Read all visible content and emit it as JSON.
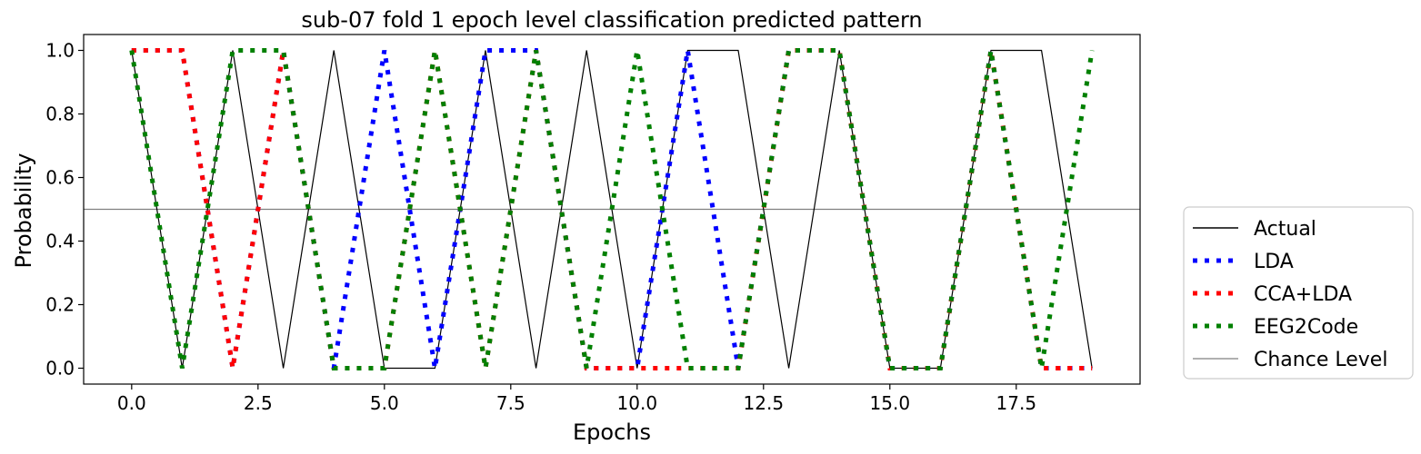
{
  "chart_data": {
    "type": "line",
    "title": "sub-07 fold 1 epoch level classification predicted pattern",
    "xlabel": "Epochs",
    "ylabel": "Probability",
    "xlim": [
      -0.95,
      19.95
    ],
    "ylim": [
      -0.05,
      1.05
    ],
    "xticks": [
      0.0,
      2.5,
      5.0,
      7.5,
      10.0,
      12.5,
      15.0,
      17.5
    ],
    "xtick_labels": [
      "0.0",
      "2.5",
      "5.0",
      "7.5",
      "10.0",
      "12.5",
      "15.0",
      "17.5"
    ],
    "yticks": [
      0.0,
      0.2,
      0.4,
      0.6,
      0.8,
      1.0
    ],
    "ytick_labels": [
      "0.0",
      "0.2",
      "0.4",
      "0.6",
      "0.8",
      "1.0"
    ],
    "grid": false,
    "legend_position": "outside-right-bottom",
    "chance_level": 0.5,
    "series": [
      {
        "name": "Actual",
        "color": "#000000",
        "style": "solid",
        "x": [
          0,
          1,
          2,
          3,
          4,
          5,
          6,
          7,
          8,
          9,
          10,
          11,
          12,
          13,
          14,
          15,
          16,
          17,
          18,
          19
        ],
        "y": [
          1,
          0,
          1,
          0,
          1,
          0,
          0,
          1,
          0,
          1,
          0,
          1,
          1,
          0,
          1,
          0,
          0,
          1,
          1,
          0
        ]
      },
      {
        "name": "LDA",
        "color": "#0000ff",
        "style": "dotted",
        "x": [
          0,
          1,
          2,
          3,
          4,
          5,
          6,
          7,
          8,
          9,
          10,
          11,
          12,
          13,
          14,
          15,
          16,
          17,
          18,
          19
        ],
        "y": [
          1,
          1,
          0,
          1,
          0,
          1,
          0,
          1,
          1,
          0,
          0,
          1,
          0,
          1,
          1,
          0,
          0,
          1,
          0,
          0
        ]
      },
      {
        "name": "CCA+LDA",
        "color": "#ff0000",
        "style": "dotted",
        "x": [
          0,
          1,
          2,
          3,
          4,
          5,
          6,
          7,
          8,
          9,
          10,
          11,
          12,
          13,
          14,
          15,
          16,
          17,
          18,
          19
        ],
        "y": [
          1,
          1,
          0,
          1,
          0,
          0,
          1,
          0,
          1,
          0,
          0,
          0,
          0,
          1,
          1,
          0,
          0,
          1,
          0,
          0
        ]
      },
      {
        "name": "EEG2Code",
        "color": "#008000",
        "style": "dotted",
        "x": [
          0,
          1,
          2,
          3,
          4,
          5,
          6,
          7,
          8,
          9,
          10,
          11,
          12,
          13,
          14,
          15,
          16,
          17,
          18,
          19
        ],
        "y": [
          1,
          0,
          1,
          1,
          0,
          0,
          1,
          0,
          1,
          0,
          1,
          0,
          0,
          1,
          1,
          0,
          0,
          1,
          0,
          1
        ]
      }
    ],
    "legend": [
      "Actual",
      "LDA",
      "CCA+LDA",
      "EEG2Code",
      "Chance Level"
    ],
    "chance_level_color": "#808080"
  }
}
